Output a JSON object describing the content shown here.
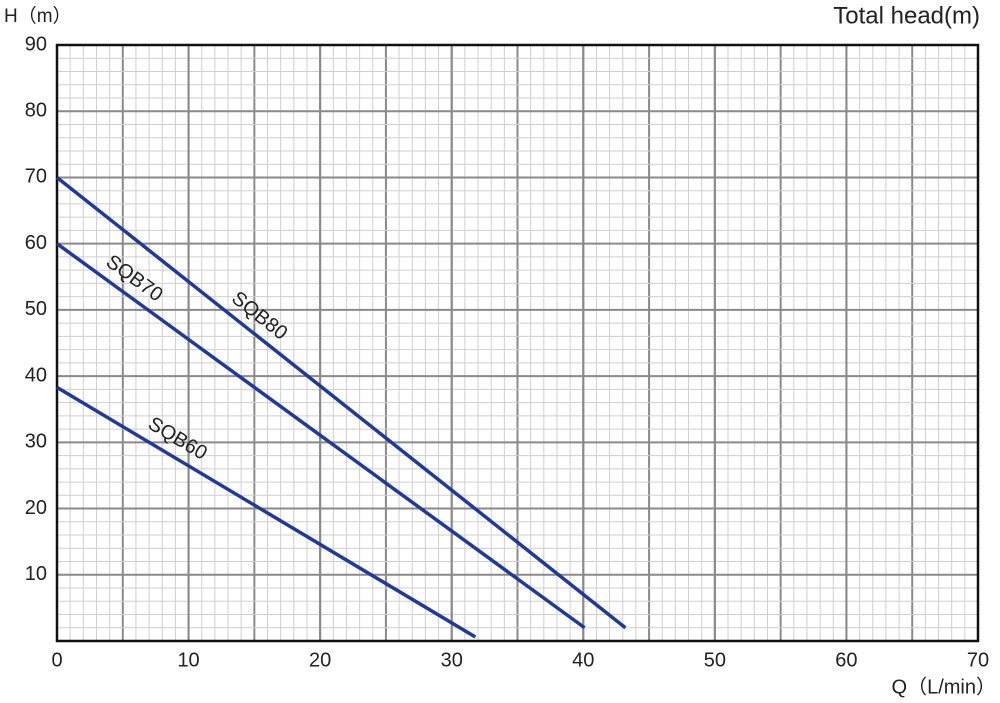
{
  "chart_data": {
    "type": "line",
    "title": "Total head(m)",
    "y_label": "H（m）",
    "x_label": "Q（L/min）",
    "xlim": [
      0,
      70
    ],
    "xticks": [
      0,
      10,
      20,
      30,
      40,
      50,
      60,
      70
    ],
    "ylim": [
      0,
      90
    ],
    "yticks": [
      10,
      20,
      30,
      40,
      50,
      60,
      70,
      80,
      90
    ],
    "grid": true,
    "series": [
      {
        "name": "SQB80",
        "color": "#1f3a9a",
        "x": [
          0,
          43.2
        ],
        "values": [
          70,
          2
        ]
      },
      {
        "name": "SQB70",
        "color": "#1f3a9a",
        "x": [
          0,
          40.1
        ],
        "values": [
          60,
          2
        ]
      },
      {
        "name": "SQB60",
        "color": "#1f3a9a",
        "x": [
          0,
          31.8
        ],
        "values": [
          38.3,
          0.6
        ]
      }
    ]
  }
}
